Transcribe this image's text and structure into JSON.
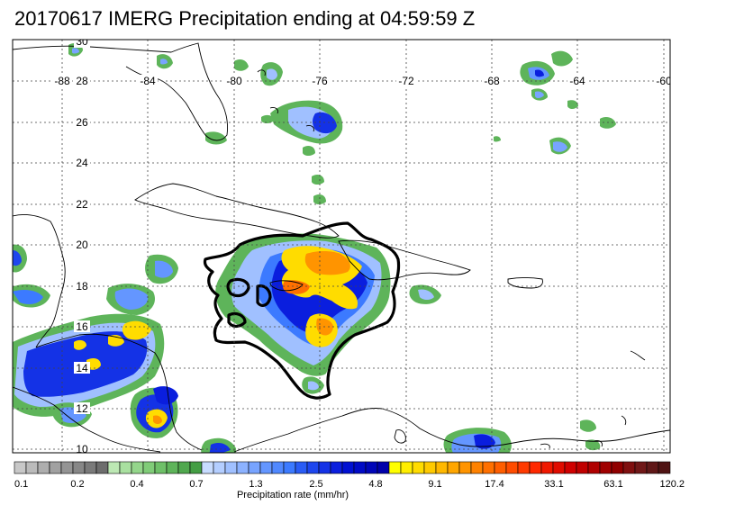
{
  "title": "20170617 IMERG Precipitation ending at 04:59:59 Z",
  "map": {
    "lon_labels": [
      "-88",
      "-84",
      "-80",
      "-76",
      "-72",
      "-68",
      "-64",
      "-60"
    ],
    "lat_labels": [
      "30",
      "28",
      "26",
      "24",
      "22",
      "20",
      "18",
      "16",
      "14",
      "12",
      "10"
    ]
  },
  "colorbar": {
    "tick_labels": [
      "0.1",
      "0.2",
      "0.4",
      "0.7",
      "1.3",
      "2.5",
      "4.8",
      "9.1",
      "17.4",
      "33.1",
      "63.1",
      "120.2"
    ],
    "title": "Precipitation rate (mm/hr)",
    "colors": [
      "#c8c8c8",
      "#bbbbbb",
      "#aeaeae",
      "#a1a1a1",
      "#949494",
      "#878787",
      "#7a7a7a",
      "#6d6d6d",
      "#bde8b4",
      "#a9e0a0",
      "#94d68b",
      "#80cc78",
      "#6ec068",
      "#5eb45a",
      "#50a84e",
      "#449e44",
      "#c8dcff",
      "#b4ceff",
      "#a0c0ff",
      "#8cb2ff",
      "#78a4ff",
      "#6496ff",
      "#5088ff",
      "#3c7aff",
      "#2a5cf5",
      "#1e46ee",
      "#1432e6",
      "#0a1ede",
      "#0010d2",
      "#000ac6",
      "#0005b8",
      "#0000aa",
      "#ffff00",
      "#ffee00",
      "#ffdc00",
      "#ffca00",
      "#ffb800",
      "#ffa600",
      "#ff9400",
      "#ff8200",
      "#ff7000",
      "#ff5e00",
      "#ff4c00",
      "#ff3a00",
      "#ff2800",
      "#f01800",
      "#e00c00",
      "#d00000",
      "#c00000",
      "#b00000",
      "#a00000",
      "#900000",
      "#801010",
      "#701818",
      "#601818",
      "#501414"
    ]
  }
}
